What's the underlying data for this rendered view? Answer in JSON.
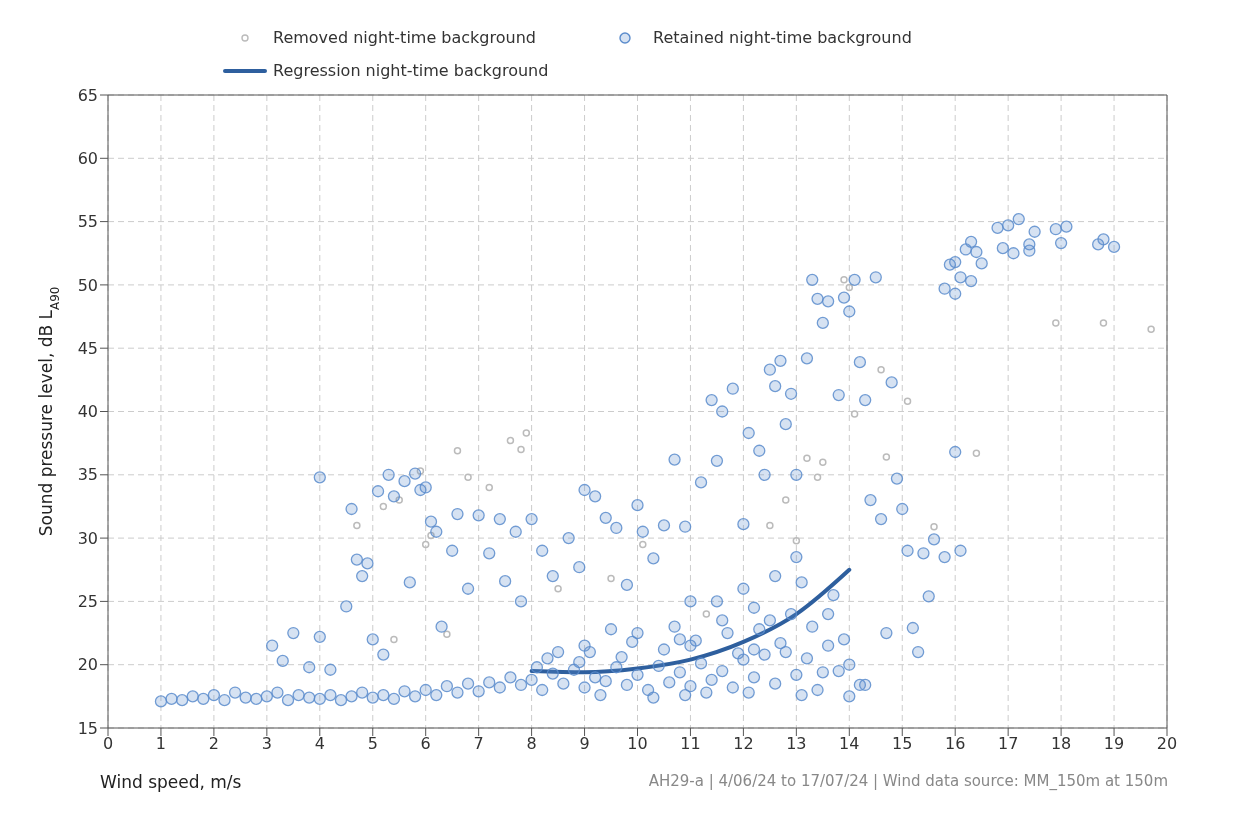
{
  "chart_data": {
    "type": "scatter",
    "xlabel": "Wind speed, m/s",
    "ylabel": "Sound pressure level, dB L$_{A90}$",
    "annotations": [
      "AH29-a | 4/06/24 to 17/07/24 | Wind data source: MM_150m at 150m"
    ],
    "xlim": [
      0,
      20
    ],
    "xticks": [
      0,
      1,
      2,
      3,
      4,
      5,
      6,
      7,
      8,
      9,
      10,
      11,
      12,
      13,
      14,
      15,
      16,
      17,
      18,
      19,
      20
    ],
    "ylim": [
      15,
      65
    ],
    "yticks": [
      15,
      20,
      25,
      30,
      35,
      40,
      45,
      50,
      55,
      60,
      65
    ],
    "grid": true,
    "legend": "top",
    "marker": "circle",
    "series": [
      {
        "name": "Removed night-time background",
        "color": "#bbbbbb",
        "x": [
          5.2,
          5.5,
          5.9,
          6.6,
          6.8,
          7.2,
          7.6,
          7.8,
          7.9,
          6.1,
          6.4,
          5.4,
          4.7,
          6.0,
          8.5,
          9.5,
          10.1,
          11.3,
          13.9,
          14.0,
          13.0,
          13.2,
          13.5,
          13.4,
          14.1,
          14.6,
          15.1,
          14.7,
          15.6,
          16.4,
          17.9,
          18.8,
          19.7,
          12.5,
          12.8
        ],
        "values": [
          32.5,
          33.0,
          35.3,
          36.9,
          34.8,
          34.0,
          37.7,
          37.0,
          38.3,
          30.2,
          22.4,
          22.0,
          31.0,
          29.5,
          26.0,
          26.8,
          29.5,
          24.0,
          50.4,
          49.8,
          29.8,
          36.3,
          36.0,
          34.8,
          39.8,
          43.3,
          40.8,
          36.4,
          30.9,
          36.7,
          47.0,
          47.0,
          46.5,
          31.0,
          33.0
        ]
      },
      {
        "name": "Retained night-time background",
        "color": "#5b8ccc",
        "x": [
          1.0,
          1.2,
          1.4,
          1.6,
          1.8,
          2.0,
          2.2,
          2.4,
          2.6,
          2.8,
          3.0,
          3.2,
          3.4,
          3.6,
          3.8,
          4.0,
          4.2,
          4.4,
          4.6,
          4.8,
          5.0,
          5.2,
          5.4,
          5.6,
          5.8,
          6.0,
          6.2,
          6.4,
          6.6,
          6.8,
          7.0,
          7.2,
          7.4,
          7.6,
          7.8,
          8.0,
          8.2,
          8.4,
          8.6,
          8.8,
          9.0,
          9.2,
          9.4,
          9.6,
          9.8,
          10.0,
          10.2,
          10.4,
          10.6,
          10.8,
          11.0,
          11.2,
          11.4,
          11.6,
          11.8,
          12.0,
          12.2,
          12.4,
          12.6,
          12.8,
          13.0,
          13.2,
          13.4,
          13.6,
          13.8,
          14.0,
          14.2,
          3.1,
          3.3,
          3.5,
          3.8,
          4.0,
          4.0,
          4.2,
          4.5,
          4.6,
          4.7,
          4.8,
          4.9,
          5.0,
          5.1,
          5.2,
          5.3,
          5.4,
          5.6,
          5.7,
          5.8,
          5.9,
          6.0,
          6.1,
          6.2,
          6.3,
          6.5,
          6.6,
          6.8,
          7.0,
          7.2,
          7.4,
          7.5,
          7.7,
          7.8,
          8.0,
          8.2,
          8.4,
          8.7,
          8.9,
          9.0,
          9.2,
          9.4,
          9.6,
          9.8,
          10.0,
          10.1,
          10.3,
          10.5,
          10.7,
          10.9,
          11.0,
          11.2,
          11.4,
          11.5,
          11.6,
          11.8,
          12.0,
          12.1,
          12.3,
          12.4,
          12.5,
          12.6,
          12.7,
          12.8,
          12.9,
          13.0,
          13.2,
          13.3,
          13.4,
          13.5,
          13.6,
          13.8,
          13.9,
          14.0,
          14.1,
          14.2,
          14.3,
          14.5,
          14.4,
          14.6,
          14.8,
          14.9,
          15.0,
          15.1,
          15.3,
          15.4,
          15.6,
          15.5,
          15.2,
          14.7,
          14.3,
          14.0,
          13.6,
          13.0,
          12.0,
          12.2,
          11.6,
          10.8,
          10.0,
          9.5,
          9.0,
          8.5,
          16.0,
          16.1,
          15.8,
          15.8,
          15.9,
          16.0,
          16.1,
          16.2,
          16.3,
          16.4,
          16.5,
          16.3,
          16.0,
          16.8,
          16.9,
          17.0,
          17.1,
          17.2,
          17.4,
          17.5,
          17.4,
          17.9,
          18.0,
          18.1,
          18.7,
          18.8,
          19.0,
          8.1,
          8.3,
          8.9,
          9.1,
          9.3,
          9.7,
          9.9,
          10.3,
          10.5,
          10.9,
          11.1,
          11.3,
          11.7,
          11.9,
          12.1,
          12.3,
          12.5,
          12.7,
          12.9,
          13.1,
          13.3,
          13.5,
          13.7,
          13.9,
          10.7,
          11.5,
          12.6,
          13.1,
          12.2,
          11.0
        ],
        "values": [
          17.1,
          17.3,
          17.2,
          17.5,
          17.3,
          17.6,
          17.2,
          17.8,
          17.4,
          17.3,
          17.5,
          17.8,
          17.2,
          17.6,
          17.4,
          17.3,
          17.6,
          17.2,
          17.5,
          17.8,
          17.4,
          17.6,
          17.3,
          17.9,
          17.5,
          18.0,
          17.6,
          18.3,
          17.8,
          18.5,
          17.9,
          18.6,
          18.2,
          19.0,
          18.4,
          18.8,
          18.0,
          19.3,
          18.5,
          19.6,
          18.2,
          19.0,
          18.7,
          19.8,
          18.4,
          19.2,
          18.0,
          19.9,
          18.6,
          19.4,
          18.3,
          20.1,
          18.8,
          19.5,
          18.2,
          20.4,
          19.0,
          20.8,
          18.5,
          21.0,
          19.2,
          20.5,
          18.0,
          21.5,
          19.5,
          20.0,
          18.4,
          21.5,
          20.3,
          22.5,
          19.8,
          34.8,
          22.2,
          19.6,
          24.6,
          32.3,
          28.3,
          27.0,
          28.0,
          22.0,
          33.7,
          20.8,
          35.0,
          33.3,
          34.5,
          26.5,
          35.1,
          33.8,
          34.0,
          31.3,
          30.5,
          23.0,
          29.0,
          31.9,
          26.0,
          31.8,
          28.8,
          31.5,
          26.6,
          30.5,
          25.0,
          31.5,
          29.0,
          27.0,
          30.0,
          27.7,
          33.8,
          33.3,
          31.6,
          30.8,
          26.3,
          32.6,
          30.5,
          28.4,
          31.0,
          36.2,
          30.9,
          25.0,
          34.4,
          40.9,
          36.1,
          40.0,
          41.8,
          31.1,
          38.3,
          36.9,
          35.0,
          43.3,
          42.0,
          44.0,
          39.0,
          41.4,
          35.0,
          44.2,
          50.4,
          48.9,
          47.0,
          48.7,
          41.3,
          49.0,
          47.9,
          50.4,
          43.9,
          40.9,
          50.6,
          33.0,
          31.5,
          42.3,
          34.7,
          32.3,
          29.0,
          21.0,
          28.8,
          29.9,
          25.4,
          22.9,
          22.5,
          18.4,
          17.5,
          24.0,
          28.5,
          26.0,
          24.5,
          23.5,
          22.0,
          22.5,
          22.8,
          21.5,
          21.0,
          36.8,
          29.0,
          28.5,
          49.7,
          51.6,
          51.8,
          50.6,
          52.8,
          53.4,
          52.6,
          51.7,
          50.3,
          49.3,
          54.5,
          52.9,
          54.7,
          52.5,
          55.2,
          53.2,
          54.2,
          52.7,
          54.4,
          53.3,
          54.6,
          53.2,
          53.6,
          53.0,
          19.8,
          20.5,
          20.2,
          21.0,
          17.6,
          20.6,
          21.8,
          17.4,
          21.2,
          17.6,
          21.9,
          17.8,
          22.5,
          20.9,
          17.8,
          22.8,
          23.5,
          21.7,
          24.0,
          17.6,
          23.0,
          19.4,
          25.5,
          22.0,
          23.0,
          25.0,
          27.0,
          26.5,
          21.2,
          21.5
        ]
      },
      {
        "name": "Regression night-time background",
        "color": "#2e5f9e",
        "type": "line",
        "marker": "none",
        "x": [
          8,
          9,
          10,
          11,
          12,
          13,
          14
        ],
        "values": [
          19.5,
          19.4,
          19.7,
          20.4,
          21.8,
          24.0,
          27.5
        ]
      }
    ]
  }
}
